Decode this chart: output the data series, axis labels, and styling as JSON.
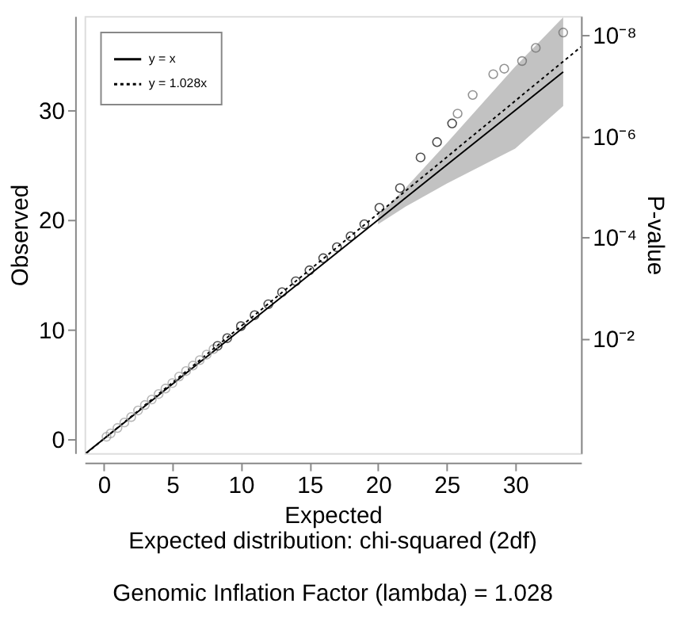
{
  "chart_data": {
    "type": "scatter",
    "xlabel": "Expected",
    "ylabel": "Observed",
    "y2label": "P-value",
    "annotations": [
      "Expected distribution: chi-squared (2df)",
      "Genomic Inflation Factor (lambda) = 1.028"
    ],
    "xlim": [
      -1.4,
      34.8
    ],
    "xticks": [
      0,
      5,
      10,
      15,
      20,
      25,
      30
    ],
    "ylim": [
      -1.3,
      38.6
    ],
    "yticks": [
      0,
      10,
      20,
      30
    ],
    "y2lim": [
      1.9,
      4.2e-09
    ],
    "y2ticks": [
      {
        "value": 0.01,
        "label": "10⁻²"
      },
      {
        "value": 0.0001,
        "label": "10⁻⁴"
      },
      {
        "value": 1e-06,
        "label": "10⁻⁶"
      },
      {
        "value": 1e-08,
        "label": "10⁻⁸"
      }
    ],
    "log": "y2",
    "grid": false,
    "legend": "top left",
    "marker": "circle",
    "series": [
      {
        "name": "y = x",
        "type": "line",
        "marker": "none",
        "line_style": "solid",
        "color": "#000000",
        "x": [
          -1.3,
          20,
          22,
          25,
          30,
          33.5
        ],
        "values": [
          -1.3,
          20,
          22,
          25,
          30,
          33.5
        ],
        "lower": [
          null,
          19.6,
          21.2,
          23.3,
          26.5,
          30.4
        ],
        "upper": [
          null,
          20.4,
          22.9,
          27,
          34,
          38.5
        ]
      },
      {
        "name": "y = 1.028x",
        "type": "line",
        "marker": "none",
        "line_style": "dotted",
        "color": "#000000",
        "x": [
          -1.26,
          34.8
        ],
        "values": [
          -1.3,
          35.8
        ]
      },
      {
        "type": "scatter",
        "color": "#999999",
        "x": [
          0.2,
          0.5,
          1,
          1.5,
          2,
          2.5,
          3,
          3.5,
          4,
          4.5,
          5,
          5.5,
          6,
          6.5,
          7,
          7.5,
          8
        ],
        "values": [
          0.2,
          0.5,
          1,
          1.5,
          2,
          2.6,
          3.1,
          3.6,
          4.1,
          4.6,
          5.1,
          5.7,
          6.2,
          6.7,
          7.2,
          7.7,
          8.2
        ]
      },
      {
        "type": "scatter",
        "color": "#000000",
        "x": [
          8.3,
          9,
          10,
          11,
          12,
          13,
          14,
          15,
          16,
          17,
          18,
          19,
          20.1,
          21.6,
          23.1,
          24.3,
          25.4
        ],
        "values": [
          8.5,
          9.2,
          10.3,
          11.3,
          12.3,
          13.4,
          14.4,
          15.4,
          16.5,
          17.5,
          18.5,
          19.6,
          21.1,
          22.9,
          25.7,
          27.1,
          28.8
        ]
      },
      {
        "type": "scatter",
        "color": "#666666",
        "x": [
          25.8,
          26.9,
          28.4,
          29.2,
          30.5,
          31.5,
          33.5
        ],
        "values": [
          29.7,
          31.4,
          33.3,
          33.8,
          34.5,
          35.7,
          37.1
        ]
      }
    ]
  }
}
